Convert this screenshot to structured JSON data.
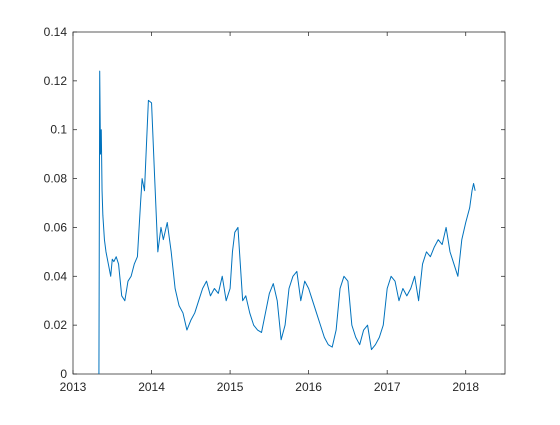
{
  "chart_data": {
    "type": "line",
    "title": "",
    "xlabel": "",
    "ylabel": "",
    "xlim": [
      2013,
      2018.5
    ],
    "ylim": [
      0,
      0.14
    ],
    "x_ticks": [
      2013,
      2014,
      2015,
      2016,
      2017,
      2018
    ],
    "x_tick_labels": [
      "2013",
      "2014",
      "2015",
      "2016",
      "2017",
      "2018"
    ],
    "y_ticks": [
      0,
      0.02,
      0.04,
      0.06,
      0.08,
      0.1,
      0.12,
      0.14
    ],
    "y_tick_labels": [
      "0",
      "0.02",
      "0.04",
      "0.06",
      "0.08",
      "0.1",
      "0.12",
      "0.14"
    ],
    "grid": false,
    "box": true,
    "colors": {
      "line": "#0072BD",
      "axes": "#262626",
      "background": "#ffffff"
    },
    "series": [
      {
        "x": [
          2013.33,
          2013.34,
          2013.35,
          2013.36,
          2013.37,
          2013.38,
          2013.4,
          2013.42,
          2013.45,
          2013.48,
          2013.5,
          2013.52,
          2013.55,
          2013.58,
          2013.62,
          2013.66,
          2013.7,
          2013.74,
          2013.78,
          2013.82,
          2013.86,
          2013.88,
          2013.91,
          2013.93,
          2013.96,
          2014.0,
          2014.04,
          2014.08,
          2014.12,
          2014.15,
          2014.2,
          2014.25,
          2014.3,
          2014.35,
          2014.4,
          2014.45,
          2014.5,
          2014.55,
          2014.6,
          2014.65,
          2014.7,
          2014.75,
          2014.8,
          2014.85,
          2014.9,
          2014.95,
          2015.0,
          2015.03,
          2015.06,
          2015.1,
          2015.13,
          2015.16,
          2015.2,
          2015.25,
          2015.3,
          2015.35,
          2015.4,
          2015.45,
          2015.5,
          2015.55,
          2015.6,
          2015.65,
          2015.7,
          2015.75,
          2015.8,
          2015.85,
          2015.9,
          2015.95,
          2016.0,
          2016.05,
          2016.1,
          2016.15,
          2016.2,
          2016.25,
          2016.3,
          2016.35,
          2016.4,
          2016.45,
          2016.5,
          2016.55,
          2016.6,
          2016.65,
          2016.7,
          2016.75,
          2016.8,
          2016.85,
          2016.9,
          2016.95,
          2017.0,
          2017.05,
          2017.1,
          2017.15,
          2017.2,
          2017.25,
          2017.3,
          2017.35,
          2017.4,
          2017.45,
          2017.5,
          2017.55,
          2017.6,
          2017.65,
          2017.7,
          2017.75,
          2017.8,
          2017.85,
          2017.9,
          2017.95,
          2018.0,
          2018.05,
          2018.08,
          2018.1,
          2018.12
        ],
        "values": [
          0.0,
          0.124,
          0.09,
          0.1,
          0.075,
          0.065,
          0.055,
          0.05,
          0.045,
          0.04,
          0.047,
          0.046,
          0.048,
          0.045,
          0.032,
          0.03,
          0.038,
          0.04,
          0.045,
          0.048,
          0.07,
          0.08,
          0.075,
          0.09,
          0.112,
          0.111,
          0.08,
          0.05,
          0.06,
          0.055,
          0.062,
          0.05,
          0.035,
          0.028,
          0.025,
          0.018,
          0.022,
          0.025,
          0.03,
          0.035,
          0.038,
          0.032,
          0.035,
          0.033,
          0.04,
          0.03,
          0.035,
          0.05,
          0.058,
          0.06,
          0.045,
          0.03,
          0.032,
          0.025,
          0.02,
          0.018,
          0.017,
          0.025,
          0.033,
          0.037,
          0.03,
          0.014,
          0.02,
          0.035,
          0.04,
          0.042,
          0.03,
          0.038,
          0.035,
          0.03,
          0.025,
          0.02,
          0.015,
          0.012,
          0.011,
          0.018,
          0.035,
          0.04,
          0.038,
          0.02,
          0.015,
          0.012,
          0.018,
          0.02,
          0.01,
          0.012,
          0.015,
          0.02,
          0.035,
          0.04,
          0.038,
          0.03,
          0.035,
          0.032,
          0.035,
          0.04,
          0.03,
          0.045,
          0.05,
          0.048,
          0.052,
          0.055,
          0.053,
          0.06,
          0.05,
          0.045,
          0.04,
          0.055,
          0.062,
          0.068,
          0.075,
          0.078,
          0.075
        ]
      }
    ]
  }
}
